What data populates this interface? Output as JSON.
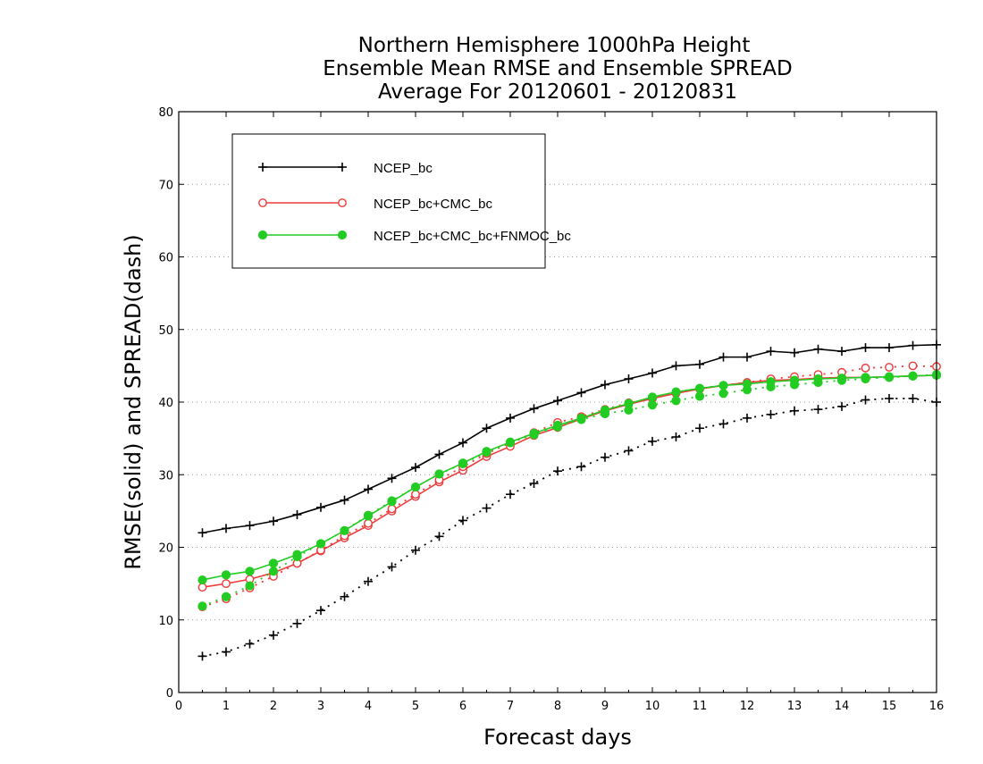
{
  "chart_data": {
    "type": "line",
    "title": [
      "Northern Hemisphere 1000hPa Height",
      "Ensemble Mean RMSE and Ensemble SPREAD",
      "Average For 20120601 - 20120831"
    ],
    "xlabel": "Forecast days",
    "ylabel": "RMSE(solid) and SPREAD(dash)",
    "xlim": [
      0,
      16
    ],
    "ylim": [
      0,
      80
    ],
    "xticks": [
      "0",
      "1",
      "2",
      "3",
      "4",
      "5",
      "6",
      "7",
      "8",
      "9",
      "10",
      "11",
      "12",
      "13",
      "14",
      "15",
      "16"
    ],
    "yticks": [
      "0",
      "10",
      "20",
      "30",
      "40",
      "50",
      "60",
      "70",
      "80"
    ],
    "grid": "horizontal dotted",
    "legend_position": "top-left",
    "x": [
      0.5,
      1,
      1.5,
      2,
      2.5,
      3,
      3.5,
      4,
      4.5,
      5,
      5.5,
      6,
      6.5,
      7,
      7.5,
      8,
      8.5,
      9,
      9.5,
      10,
      10.5,
      11,
      11.5,
      12,
      12.5,
      13,
      13.5,
      14,
      14.5,
      15,
      15.5,
      16
    ],
    "series": [
      {
        "name": "NCEP_bc",
        "color": "#000000",
        "marker": "plus",
        "rmse": [
          22,
          22.6,
          23,
          23.6,
          24.5,
          25.5,
          26.5,
          28,
          29.5,
          31,
          32.8,
          34.4,
          36.4,
          37.8,
          39.1,
          40.2,
          41.3,
          42.4,
          43.2,
          44,
          45,
          45.2,
          46.2,
          46.2,
          47,
          46.8,
          47.3,
          47,
          47.5,
          47.5,
          47.8,
          47.9
        ],
        "spread": [
          5,
          5.6,
          6.7,
          7.9,
          9.5,
          11.3,
          13.2,
          15.3,
          17.3,
          19.6,
          21.5,
          23.7,
          25.4,
          27.3,
          28.8,
          30.5,
          31.1,
          32.4,
          33.3,
          34.6,
          35.2,
          36.4,
          37,
          37.8,
          38.3,
          38.8,
          39,
          39.4,
          40.3,
          40.5,
          40.5,
          40
        ]
      },
      {
        "name": "NCEP_bc+CMC_bc",
        "color": "#ee3b3b",
        "marker": "open-circle",
        "rmse": [
          14.5,
          15,
          15.6,
          16.5,
          17.8,
          19.5,
          21.3,
          23,
          25,
          27,
          29,
          30.6,
          32.5,
          33.9,
          35.4,
          36.5,
          37.7,
          38.8,
          39.7,
          40.5,
          41.2,
          41.8,
          42.3,
          42.7,
          43,
          43.1,
          43.3,
          43.4,
          43.4,
          43.5,
          43.6,
          43.7
        ],
        "spread": [
          11.8,
          12.9,
          14.4,
          16,
          17.8,
          19.6,
          21.6,
          23.3,
          25.3,
          27.3,
          29.3,
          31.1,
          32.9,
          34.4,
          35.8,
          37.2,
          38,
          39,
          39.9,
          40.5,
          41.3,
          41.9,
          42.3,
          42.7,
          43.2,
          43.5,
          43.8,
          44.1,
          44.7,
          44.8,
          45,
          44.9
        ]
      },
      {
        "name": "NCEP_bc+CMC_bc+FNMOC_bc",
        "color": "#22cc22",
        "marker": "filled-circle",
        "rmse": [
          15.5,
          16.2,
          16.7,
          17.8,
          19,
          20.5,
          22.3,
          24.3,
          26.3,
          28.3,
          30.1,
          31.6,
          33.2,
          34.5,
          35.7,
          36.8,
          37.8,
          38.9,
          39.8,
          40.7,
          41.4,
          41.9,
          42.3,
          42.5,
          42.8,
          43,
          43.2,
          43.3,
          43.4,
          43.5,
          43.6,
          43.7
        ],
        "spread": [
          11.9,
          13.2,
          14.7,
          16.7,
          18.7,
          20.5,
          22.3,
          24.4,
          26.4,
          28.3,
          30.1,
          31.5,
          33.1,
          34.4,
          35.5,
          36.6,
          37.6,
          38.4,
          38.9,
          39.6,
          40.2,
          40.8,
          41.2,
          41.7,
          42.1,
          42.4,
          42.7,
          43,
          43.2,
          43.4,
          43.6,
          43.8
        ]
      }
    ]
  }
}
